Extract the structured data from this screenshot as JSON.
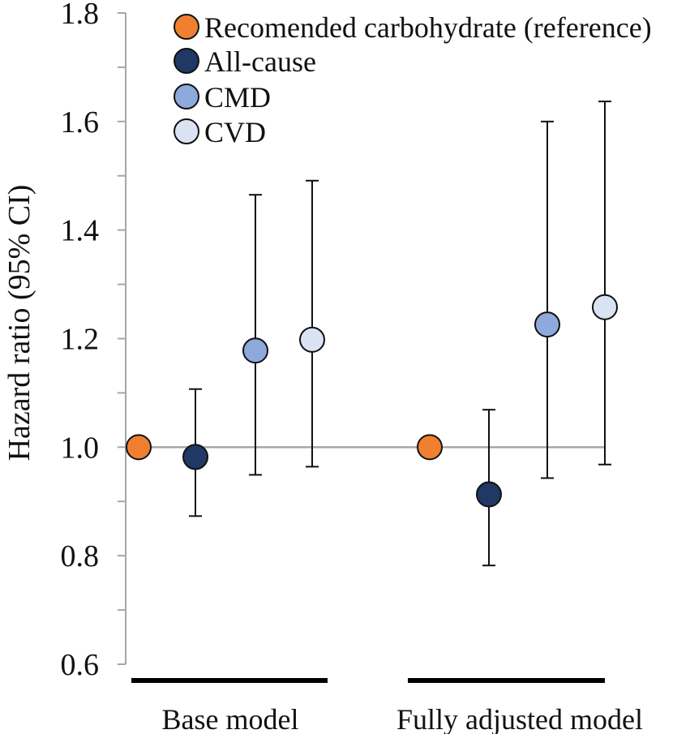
{
  "chart_data": {
    "type": "scatter",
    "subtype": "forest-plot",
    "title": "",
    "ylabel": "Hazard ratio (95% CI)",
    "xlabel": "",
    "ylim": [
      0.6,
      1.8
    ],
    "yticks": [
      "0.6",
      "0.8",
      "1.0",
      "1.2",
      "1.4",
      "1.6",
      "1.8"
    ],
    "reference_line": 1.0,
    "legend_position": "top-right",
    "groups": [
      "Base model",
      "Fully adjusted model"
    ],
    "series": [
      {
        "name": "Recomended carbohydrate (reference)",
        "color": "#F08030",
        "values": [
          1.0,
          1.0
        ],
        "lower": [
          null,
          null
        ],
        "upper": [
          null,
          null
        ]
      },
      {
        "name": "All-cause",
        "color": "#1F3864",
        "values": [
          0.982,
          0.913
        ],
        "lower": [
          0.873,
          0.782
        ],
        "upper": [
          1.107,
          1.069
        ]
      },
      {
        "name": "CMD",
        "color": "#8EA9DB",
        "values": [
          1.178,
          1.226
        ],
        "lower": [
          0.949,
          0.943
        ],
        "upper": [
          1.465,
          1.6
        ]
      },
      {
        "name": "CVD",
        "color": "#DAE3F3",
        "values": [
          1.198,
          1.258
        ],
        "lower": [
          0.964,
          0.968
        ],
        "upper": [
          1.491,
          1.637
        ]
      }
    ]
  }
}
